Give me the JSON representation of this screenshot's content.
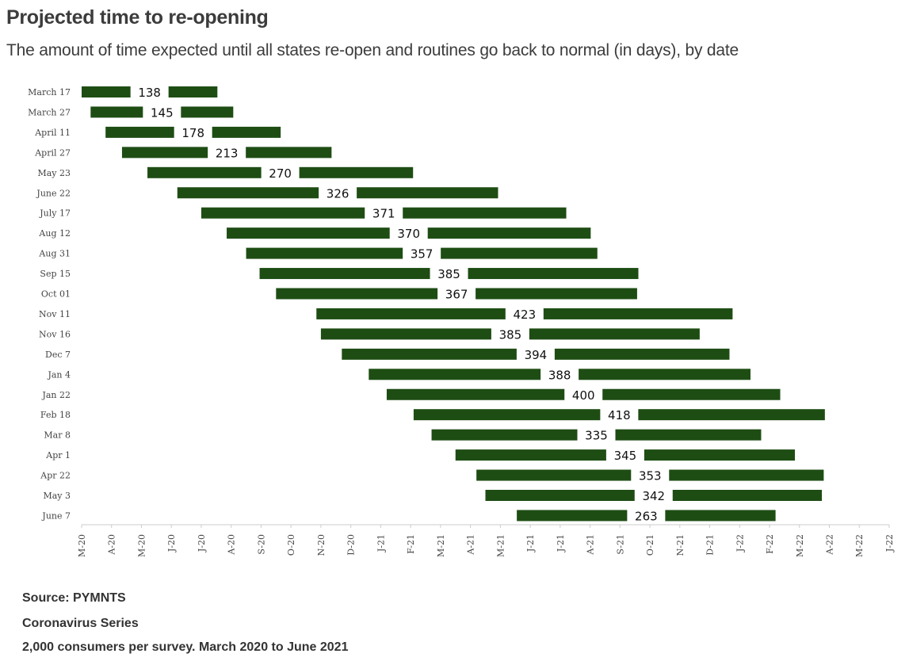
{
  "header": {
    "title": "Projected time to re-opening",
    "subtitle": "The amount of time expected until all states re-open and routines go back to normal (in days), by date"
  },
  "footer": {
    "source": "Source: PYMNTS",
    "series": "Coronavirus Series",
    "note": "2,000 consumers per survey. March 2020 to June 2021"
  },
  "colors": {
    "bar": "#1e4d14",
    "axis": "#cccccc",
    "text": "#333333"
  },
  "chart_data": {
    "type": "bar",
    "orientation": "horizontal-gantt",
    "xlabel": "",
    "ylabel": "",
    "x_ticks": [
      "M-20",
      "A-20",
      "M-20",
      "J-20",
      "J-20",
      "A-20",
      "S-20",
      "O-20",
      "N-20",
      "D-20",
      "J-21",
      "F-21",
      "M-21",
      "A-21",
      "M-21",
      "J-21",
      "J-21",
      "A-21",
      "S-21",
      "O-21",
      "N-21",
      "D-21",
      "J-22",
      "F-22",
      "M-22",
      "A-22",
      "M-22",
      "J-22"
    ],
    "x_range_months": [
      0,
      27
    ],
    "x_range_label": "March 2020 to June 2022",
    "rows": [
      {
        "label": "March 17",
        "start_month": 0.0,
        "days": 138
      },
      {
        "label": "March 27",
        "start_month": 0.3,
        "days": 145
      },
      {
        "label": "April 11",
        "start_month": 0.8,
        "days": 178
      },
      {
        "label": "April 27",
        "start_month": 1.35,
        "days": 213
      },
      {
        "label": "May 23",
        "start_month": 2.2,
        "days": 270
      },
      {
        "label": "June 22",
        "start_month": 3.2,
        "days": 326
      },
      {
        "label": "July 17",
        "start_month": 4.0,
        "days": 371
      },
      {
        "label": "Aug 12",
        "start_month": 4.85,
        "days": 370
      },
      {
        "label": "Aug 31",
        "start_month": 5.5,
        "days": 357
      },
      {
        "label": "Sep 15",
        "start_month": 5.95,
        "days": 385
      },
      {
        "label": "Oct 01",
        "start_month": 6.5,
        "days": 367
      },
      {
        "label": "Nov 11",
        "start_month": 7.85,
        "days": 423
      },
      {
        "label": "Nov 16",
        "start_month": 8.0,
        "days": 385
      },
      {
        "label": "Dec 7",
        "start_month": 8.7,
        "days": 394
      },
      {
        "label": "Jan 4",
        "start_month": 9.6,
        "days": 388
      },
      {
        "label": "Jan 22",
        "start_month": 10.2,
        "days": 400
      },
      {
        "label": "Feb 18",
        "start_month": 11.1,
        "days": 418
      },
      {
        "label": "Mar 8",
        "start_month": 11.7,
        "days": 335
      },
      {
        "label": "Apr 1",
        "start_month": 12.5,
        "days": 345
      },
      {
        "label": "Apr 22",
        "start_month": 13.2,
        "days": 353
      },
      {
        "label": "May 3",
        "start_month": 13.5,
        "days": 342
      },
      {
        "label": "June 7",
        "start_month": 14.55,
        "days": 263
      }
    ]
  }
}
